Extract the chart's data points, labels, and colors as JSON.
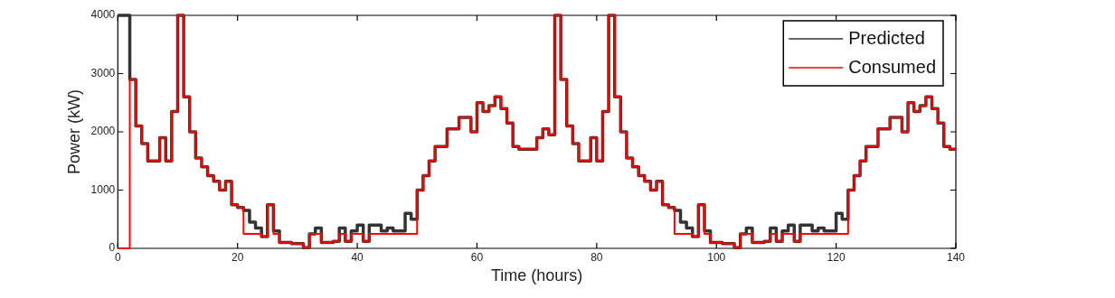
{
  "chart_data": {
    "type": "step",
    "xlabel": "Time (hours)",
    "ylabel": "Power (kW)",
    "x": [
      0,
      1,
      2,
      3,
      4,
      5,
      6,
      7,
      8,
      9,
      10,
      11,
      12,
      13,
      14,
      15,
      16,
      17,
      18,
      19,
      20,
      21,
      22,
      23,
      24,
      25,
      26,
      27,
      28,
      29,
      30,
      31,
      32,
      33,
      34,
      35,
      36,
      37,
      38,
      39,
      40,
      41,
      42,
      43,
      44,
      45,
      46,
      47,
      48,
      49,
      50,
      51,
      52,
      53,
      54,
      55,
      56,
      57,
      58,
      59,
      60,
      61,
      62,
      63,
      64,
      65,
      66,
      67,
      68,
      69,
      70,
      71,
      72,
      73,
      74,
      75,
      76,
      77,
      78,
      79,
      80,
      81,
      82,
      83,
      84,
      85,
      86,
      87,
      88,
      89,
      90,
      91,
      92,
      93,
      94,
      95,
      96,
      97,
      98,
      99,
      100,
      101,
      102,
      103,
      104,
      105,
      106,
      107,
      108,
      109,
      110,
      111,
      112,
      113,
      114,
      115,
      116,
      117,
      118,
      119,
      120,
      121,
      122,
      123,
      124,
      125,
      126,
      127,
      128,
      129,
      130,
      131,
      132,
      133,
      134,
      135,
      136,
      137,
      138,
      139,
      140
    ],
    "series": [
      {
        "name": "Predicted",
        "color": "#333333",
        "values": [
          4000,
          4000,
          2900,
          2100,
          1800,
          1500,
          1500,
          1900,
          1500,
          2350,
          4000,
          2600,
          2000,
          1550,
          1400,
          1250,
          1150,
          1000,
          1150,
          750,
          700,
          650,
          450,
          350,
          200,
          750,
          300,
          100,
          100,
          80,
          80,
          10,
          250,
          350,
          100,
          100,
          120,
          350,
          120,
          300,
          400,
          120,
          400,
          400,
          300,
          350,
          300,
          300,
          600,
          500,
          1000,
          1250,
          1500,
          1750,
          1750,
          2050,
          2050,
          2250,
          2250,
          2000,
          2500,
          2350,
          2450,
          2600,
          2400,
          2150,
          1750,
          1700,
          1700,
          1700,
          1900,
          2050,
          1950,
          4000,
          2900,
          2100,
          1800,
          1500,
          1500,
          1900,
          1500,
          2350,
          4000,
          2600,
          2000,
          1550,
          1400,
          1250,
          1150,
          1000,
          1150,
          750,
          700,
          650,
          450,
          350,
          200,
          750,
          300,
          100,
          100,
          80,
          80,
          10,
          250,
          350,
          100,
          100,
          120,
          350,
          120,
          300,
          400,
          120,
          400,
          400,
          300,
          350,
          300,
          300,
          600,
          500,
          1000,
          1250,
          1500,
          1750,
          1750,
          2050,
          2050,
          2250,
          2250,
          2000,
          2500,
          2350,
          2450,
          2600,
          2400,
          2150,
          1750,
          1700,
          1700
        ]
      },
      {
        "name": "Consumed",
        "color": "#ff0000",
        "values": [
          0,
          0,
          2900,
          2100,
          1800,
          1500,
          1500,
          1900,
          1500,
          2350,
          4000,
          2600,
          2000,
          1550,
          1400,
          1250,
          1150,
          1000,
          1150,
          750,
          700,
          250,
          250,
          250,
          200,
          750,
          250,
          100,
          100,
          80,
          80,
          10,
          250,
          250,
          100,
          100,
          120,
          250,
          120,
          250,
          250,
          120,
          250,
          250,
          250,
          250,
          250,
          250,
          250,
          250,
          1000,
          1250,
          1500,
          1750,
          1750,
          2050,
          2050,
          2250,
          2250,
          2000,
          2500,
          2350,
          2450,
          2600,
          2400,
          2150,
          1750,
          1700,
          1700,
          1700,
          1900,
          2050,
          1950,
          4000,
          2900,
          2100,
          1800,
          1500,
          1500,
          1900,
          1500,
          2350,
          4000,
          2600,
          2000,
          1550,
          1400,
          1250,
          1150,
          1000,
          1150,
          750,
          700,
          250,
          250,
          250,
          200,
          750,
          250,
          100,
          100,
          80,
          80,
          10,
          250,
          250,
          100,
          100,
          120,
          250,
          120,
          250,
          250,
          120,
          250,
          250,
          250,
          250,
          250,
          250,
          250,
          250,
          1000,
          1250,
          1500,
          1750,
          1750,
          2050,
          2050,
          2250,
          2250,
          2000,
          2500,
          2350,
          2450,
          2600,
          2400,
          2150,
          1750,
          1700,
          1700
        ]
      }
    ],
    "xlim": [
      0,
      140
    ],
    "xticks": [
      0,
      20,
      40,
      60,
      80,
      100,
      120,
      140
    ],
    "ylim": [
      0,
      4000
    ],
    "yticks": [
      0,
      1000,
      2000,
      3000,
      4000
    ],
    "grid": false,
    "legend": "top right"
  }
}
